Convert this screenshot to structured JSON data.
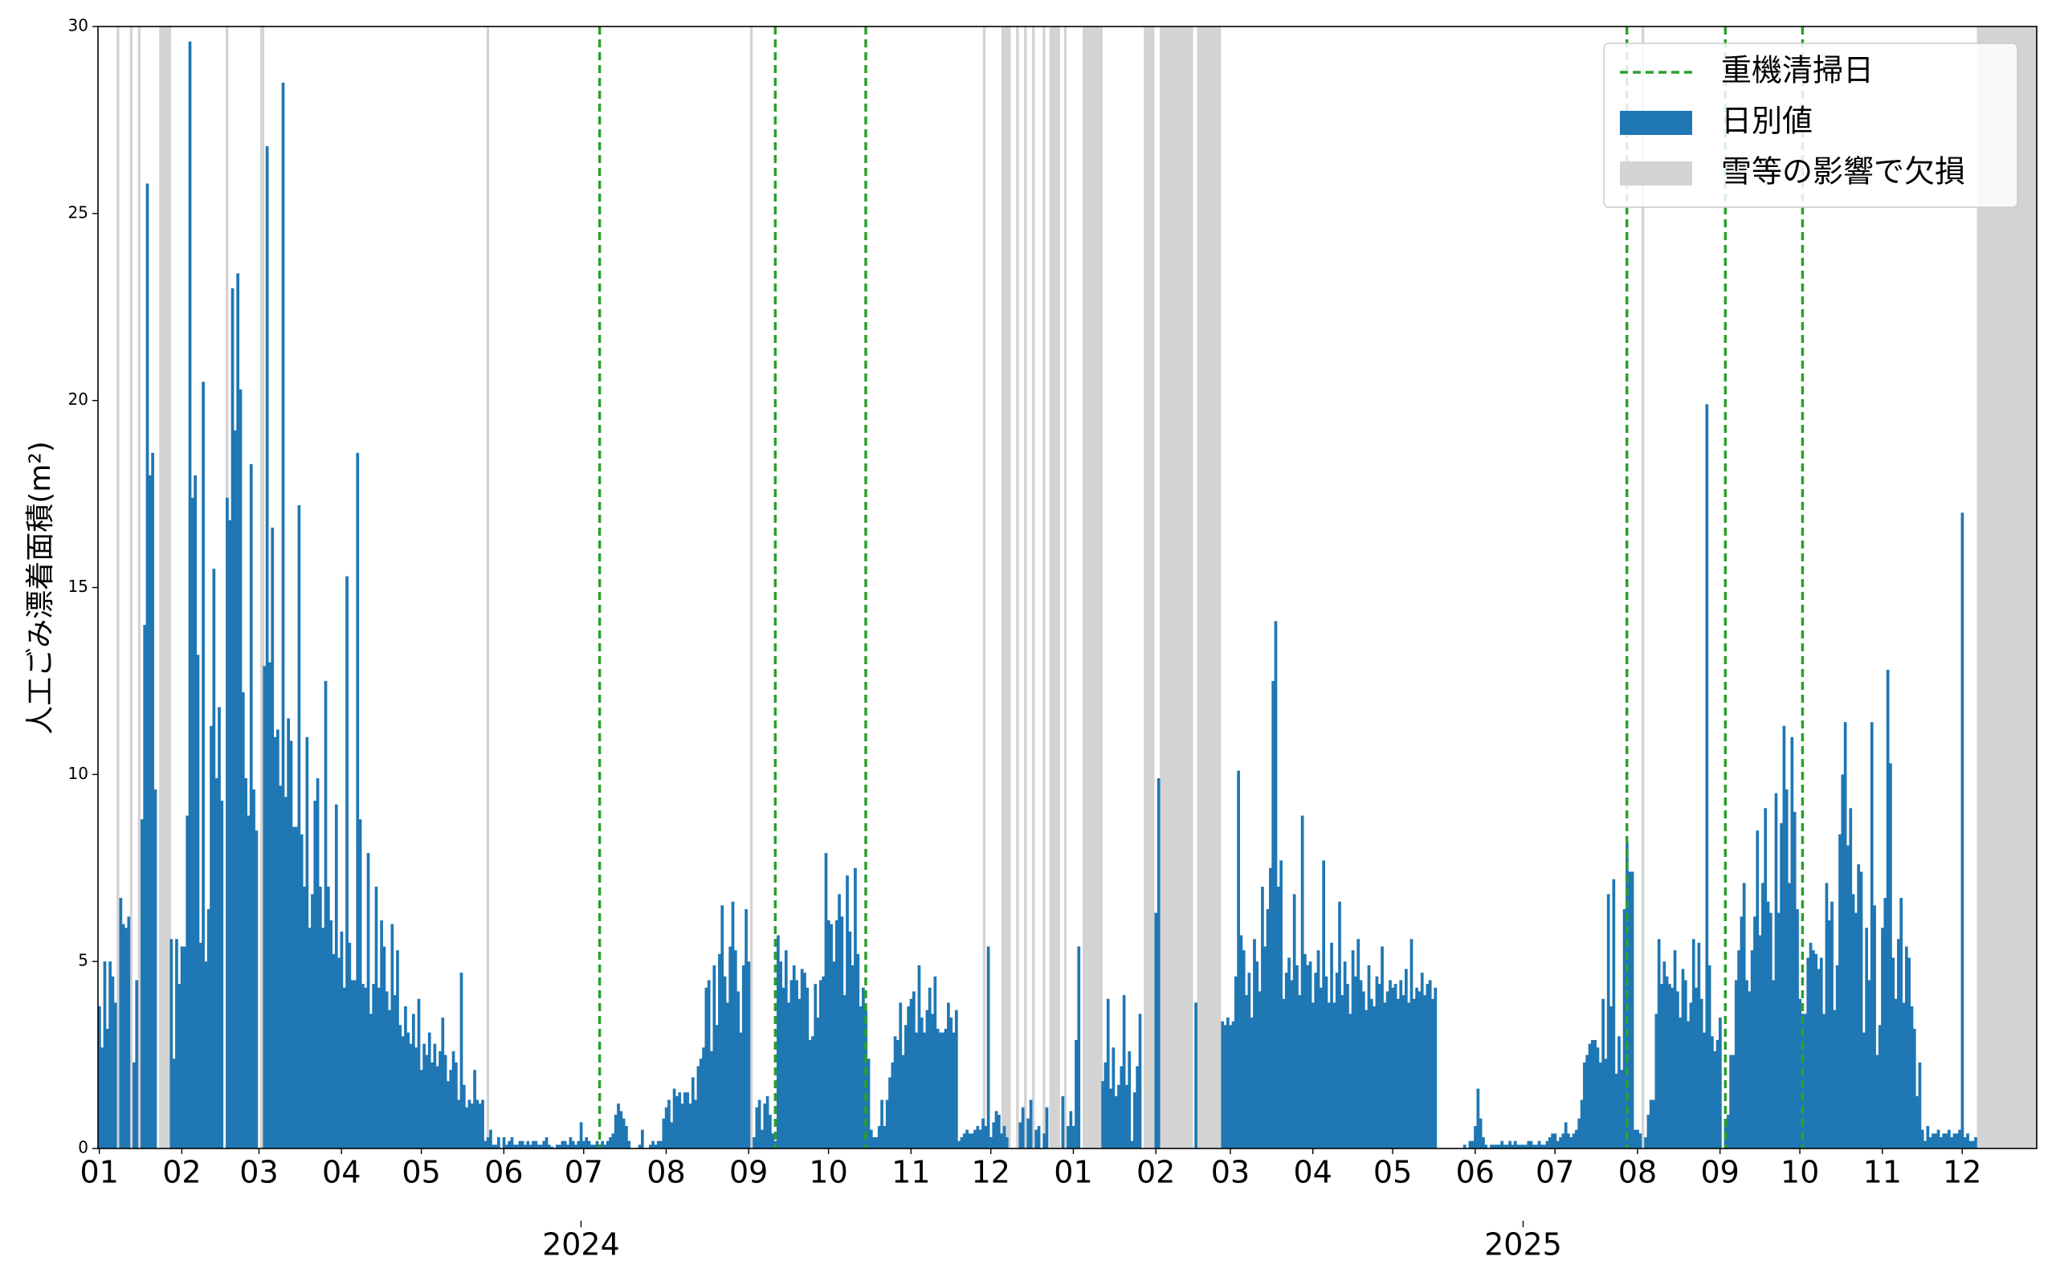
{
  "chart_data": {
    "type": "bar",
    "ylabel": "人工ごみ漂着面積(m²)",
    "xlim": [
      -0.5,
      728
    ],
    "ylim": [
      0,
      30
    ],
    "yticks": [
      0,
      5,
      10,
      15,
      20,
      25,
      30
    ],
    "xticks": [
      {
        "value": 0,
        "label": "01"
      },
      {
        "value": 31,
        "label": "02"
      },
      {
        "value": 60,
        "label": "03"
      },
      {
        "value": 91,
        "label": "04"
      },
      {
        "value": 121,
        "label": "05"
      },
      {
        "value": 152,
        "label": "06"
      },
      {
        "value": 182,
        "label": "07"
      },
      {
        "value": 213,
        "label": "08"
      },
      {
        "value": 244,
        "label": "09"
      },
      {
        "value": 274,
        "label": "10"
      },
      {
        "value": 305,
        "label": "11"
      },
      {
        "value": 335,
        "label": "12"
      },
      {
        "value": 366,
        "label": "01"
      },
      {
        "value": 397,
        "label": "02"
      },
      {
        "value": 425,
        "label": "03"
      },
      {
        "value": 456,
        "label": "04"
      },
      {
        "value": 486,
        "label": "05"
      },
      {
        "value": 517,
        "label": "06"
      },
      {
        "value": 547,
        "label": "07"
      },
      {
        "value": 578,
        "label": "08"
      },
      {
        "value": 609,
        "label": "09"
      },
      {
        "value": 639,
        "label": "10"
      },
      {
        "value": 670,
        "label": "11"
      },
      {
        "value": 700,
        "label": "12"
      }
    ],
    "year_ticks": [
      {
        "value": 181,
        "label": "2024"
      },
      {
        "value": 535,
        "label": "2025"
      }
    ],
    "legend": "upper right",
    "series": [
      {
        "name": "日別値",
        "color": "#1f77b4",
        "values": [
          3.8,
          2.7,
          5,
          3.2,
          5,
          4.6,
          3.9,
          0,
          6.7,
          6,
          5.9,
          6.2,
          0,
          2.3,
          4.5,
          0,
          8.8,
          14,
          25.8,
          18,
          18.6,
          9.6,
          0,
          0,
          0,
          0,
          0,
          5.6,
          2.4,
          5.6,
          4.4,
          5.4,
          5.4,
          8.9,
          29.6,
          17.4,
          18,
          13.2,
          5.5,
          20.5,
          5,
          6.4,
          11.3,
          15.5,
          9.9,
          11.8,
          9.3,
          0,
          17.4,
          16.8,
          23,
          19.2,
          23.4,
          20.3,
          12.2,
          9.9,
          8.9,
          18.3,
          9.6,
          8.5,
          0,
          0,
          12.9,
          26.8,
          13,
          16.6,
          11,
          11.2,
          9.7,
          28.5,
          9.4,
          11.5,
          10.9,
          8.6,
          8.6,
          17.2,
          8.4,
          7,
          11,
          5.9,
          6.8,
          9.3,
          9.9,
          7,
          5.9,
          12.5,
          7,
          6.1,
          5.2,
          9.2,
          5.1,
          5.8,
          4.3,
          15.3,
          5.5,
          4.5,
          4.5,
          18.6,
          8.8,
          4.4,
          4.3,
          7.9,
          3.6,
          4.4,
          7,
          4.3,
          6.1,
          5.4,
          4.2,
          3.7,
          6,
          4.1,
          5.3,
          3.3,
          3,
          3.8,
          3.1,
          2.8,
          3.6,
          2.7,
          4,
          2.1,
          2.8,
          2.5,
          3.1,
          2.3,
          2.8,
          2.2,
          2.6,
          3.5,
          2.5,
          1.8,
          2.1,
          2.6,
          2.3,
          1.3,
          4.7,
          1.7,
          1.1,
          1.3,
          1.2,
          2.1,
          1.3,
          1.2,
          1.3,
          0.2,
          0.3,
          0.5,
          0.1,
          0.1,
          0.3,
          0,
          0.3,
          0.1,
          0.2,
          0.3,
          0.1,
          0.1,
          0.2,
          0.2,
          0.1,
          0.2,
          0.1,
          0.2,
          0.2,
          0.1,
          0.1,
          0.2,
          0.3,
          0.1,
          0.05,
          0,
          0.1,
          0.1,
          0.2,
          0.2,
          0.1,
          0.3,
          0.2,
          0.1,
          0.2,
          0.7,
          0.2,
          0.3,
          0.2,
          0.1,
          0.1,
          0.2,
          0.1,
          0.2,
          0.1,
          0.2,
          0.3,
          0.4,
          0.9,
          1.2,
          1,
          0.8,
          0.6,
          0.2,
          0,
          0,
          0,
          0.1,
          0.5,
          0,
          0,
          0.1,
          0.2,
          0.1,
          0.2,
          0.2,
          0.8,
          1.1,
          1.3,
          0.7,
          1.6,
          1.4,
          1.5,
          1.2,
          1.5,
          1.5,
          1.2,
          1.9,
          1.3,
          2.2,
          2.4,
          2.7,
          4.3,
          4.5,
          2.6,
          4.9,
          3.3,
          5.2,
          6.5,
          4.6,
          3.9,
          5.4,
          6.6,
          5.3,
          4.2,
          3.1,
          4.9,
          6.4,
          5,
          0,
          0.3,
          1.1,
          1.3,
          0.5,
          1.2,
          1.4,
          0.9,
          0.4,
          0.2,
          5.7,
          5,
          4.3,
          5.3,
          3.9,
          4.5,
          4.9,
          4.5,
          4,
          4.8,
          4.7,
          4.3,
          2.9,
          3,
          4.4,
          3.5,
          4.5,
          4.6,
          7.9,
          6.1,
          6,
          5,
          6.1,
          6.8,
          6.2,
          4.1,
          7.3,
          5.8,
          4.9,
          7.5,
          5.2,
          3.8,
          4.3,
          3.7,
          2.4,
          0.5,
          0.3,
          0.3,
          0.6,
          1.3,
          0.6,
          1.3,
          1.9,
          2.3,
          3,
          2.9,
          3.9,
          2.5,
          3.3,
          3.8,
          4,
          4.2,
          3.1,
          4.9,
          3.5,
          3.1,
          3.7,
          4.3,
          3.6,
          4.6,
          3.2,
          3.1,
          3.1,
          3.2,
          3.9,
          3.5,
          3.1,
          3.7,
          0.2,
          0.3,
          0.4,
          0.5,
          0.4,
          0.4,
          0.5,
          0.6,
          0.5,
          0.8,
          0.6,
          5.4,
          0.3,
          0.7,
          1,
          0.9,
          0.4,
          0.6,
          0.3,
          0,
          0,
          0,
          0,
          0.7,
          1.1,
          0,
          0.8,
          1.3,
          0,
          0.5,
          0.6,
          0,
          0.4,
          1.1,
          0,
          0,
          0,
          0,
          0,
          1.4,
          0,
          0.6,
          1,
          0.6,
          2.9,
          5.4,
          0,
          0,
          0,
          0,
          0,
          0,
          0,
          0,
          1.8,
          2.3,
          4,
          1.6,
          2.7,
          1.4,
          1.7,
          2.2,
          4.1,
          1.7,
          2.6,
          0.2,
          1.5,
          2.2,
          3.6,
          0,
          0,
          0,
          0,
          0,
          6.3,
          9.9,
          0,
          0,
          0,
          0,
          0,
          0,
          0,
          0,
          0,
          0,
          0,
          0,
          0,
          3.9,
          0,
          0,
          0,
          0,
          0,
          0,
          0,
          0,
          0,
          3.4,
          3.3,
          3.5,
          3.3,
          3.4,
          4.6,
          10.1,
          5.7,
          5.3,
          4.1,
          4.7,
          3.5,
          5.6,
          5,
          4.2,
          7,
          5.4,
          6.4,
          7.5,
          12.5,
          14.1,
          7,
          7.7,
          4,
          4.7,
          5.1,
          4.5,
          6.8,
          4.9,
          4.1,
          8.9,
          5.2,
          4.9,
          5,
          3.9,
          4.7,
          5.3,
          4.3,
          7.7,
          4.6,
          3.9,
          5.5,
          3.9,
          4.7,
          6.6,
          4.1,
          5,
          4.4,
          3.6,
          5.3,
          4.6,
          5.6,
          4.5,
          4.2,
          3.7,
          4.9,
          4,
          3.8,
          4.6,
          4.4,
          5.4,
          3.9,
          4.2,
          4.5,
          4.3,
          4.4,
          4,
          4.5,
          4.1,
          4.8,
          3.9,
          5.6,
          4,
          4.3,
          4.2,
          4.7,
          4.1,
          4.4,
          4.5,
          4,
          4.3,
          0,
          0,
          0,
          0,
          0,
          0,
          0,
          0,
          0,
          0,
          0.1,
          0,
          0.2,
          0.2,
          0.6,
          1.6,
          0.8,
          0.3,
          0.1,
          0,
          0.1,
          0.1,
          0.1,
          0.1,
          0.2,
          0.1,
          0.1,
          0.2,
          0.1,
          0.2,
          0.1,
          0.1,
          0.1,
          0.1,
          0.2,
          0.2,
          0.1,
          0.1,
          0.2,
          0.1,
          0.1,
          0.2,
          0.3,
          0.4,
          0.4,
          0.2,
          0.3,
          0.4,
          0.7,
          0.4,
          0.3,
          0.4,
          0.5,
          0.8,
          1.3,
          2.3,
          2.5,
          2.8,
          2.9,
          2.9,
          2.7,
          2.3,
          4,
          2.4,
          6.8,
          3.8,
          7.2,
          2,
          3,
          2.1,
          6.4,
          8.2,
          7.4,
          7.4,
          0.5,
          0.5,
          0.4,
          0,
          0.3,
          0.9,
          1.3,
          1.3,
          3.6,
          5.6,
          4.4,
          5,
          4.6,
          4.4,
          4.3,
          5.3,
          4.2,
          3.5,
          4.8,
          4.5,
          3.4,
          3.9,
          5.6,
          4.3,
          5.5,
          4,
          3.1,
          19.9,
          4.9,
          3,
          2.6,
          2.9,
          3.5,
          0,
          0.7,
          0.9,
          2.5,
          2.5,
          4.5,
          5.3,
          6.2,
          7.1,
          4.5,
          4.2,
          5.3,
          6.2,
          8.5,
          5.7,
          7.1,
          9.1,
          6.6,
          6.3,
          4.5,
          9.5,
          6.3,
          8.7,
          11.3,
          9.6,
          7.1,
          11,
          9,
          6.4,
          4,
          3.6,
          3.6,
          5.1,
          5.5,
          5.3,
          5.2,
          4.8,
          5.1,
          3.6,
          7.1,
          6.1,
          6.6,
          3.7,
          4.9,
          8.4,
          10,
          11.4,
          8.1,
          9.1,
          6.8,
          6.3,
          7.6,
          7.4,
          3.1,
          5.9,
          4.5,
          11.4,
          6.5,
          2.5,
          3.3,
          5.9,
          6.7,
          12.8,
          10.3,
          5.1,
          4,
          5.6,
          6.7,
          3.9,
          5.4,
          5.1,
          3.8,
          3.2,
          1.4,
          2.3,
          0.5,
          0.2,
          0.6,
          0.3,
          0.4,
          0.4,
          0.5,
          0.3,
          0.4,
          0.4,
          0.5,
          0.3,
          0.4,
          0.4,
          0.5,
          17,
          0.3,
          0.4,
          0.2,
          0.2,
          0.3
        ]
      }
    ],
    "vlines": {
      "name": "重機清掃日",
      "color": "#2ca02c",
      "x": [
        188,
        254,
        288,
        574,
        611,
        640
      ]
    },
    "spans": {
      "name": "雪等の影響で欠損",
      "color": "#d3d3d3",
      "ranges": [
        [
          6.5,
          7.5
        ],
        [
          11.5,
          12.5
        ],
        [
          14.5,
          15.5
        ],
        [
          22.5,
          27
        ],
        [
          47.5,
          48.5
        ],
        [
          60.5,
          62
        ],
        [
          145.5,
          146.5
        ],
        [
          244.5,
          245.5
        ],
        [
          332,
          333
        ],
        [
          339,
          342.5
        ],
        [
          344.5,
          345.5
        ],
        [
          347.5,
          348.5
        ],
        [
          350.5,
          351.5
        ],
        [
          354.5,
          355.5
        ],
        [
          357,
          361
        ],
        [
          362.5,
          363.5
        ],
        [
          369.5,
          377
        ],
        [
          392.5,
          396.5
        ],
        [
          398.5,
          411
        ],
        [
          412.5,
          421.5
        ],
        [
          579.5,
          580.5
        ],
        [
          705.5,
          728
        ]
      ]
    }
  }
}
